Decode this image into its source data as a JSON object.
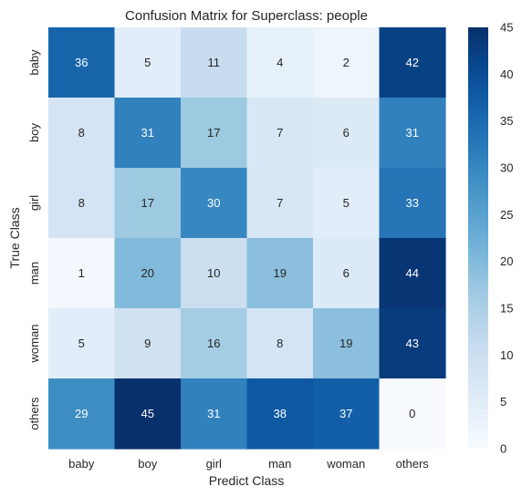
{
  "chart_data": {
    "type": "heatmap",
    "title": "Confusion Matrix for Superclass: people",
    "xlabel": "Predict Class",
    "ylabel": "True Class",
    "x_categories": [
      "baby",
      "boy",
      "girl",
      "man",
      "woman",
      "others"
    ],
    "y_categories": [
      "baby",
      "boy",
      "girl",
      "man",
      "woman",
      "others"
    ],
    "values": [
      [
        36,
        5,
        11,
        4,
        2,
        42
      ],
      [
        8,
        31,
        17,
        7,
        6,
        31
      ],
      [
        8,
        17,
        30,
        7,
        5,
        33
      ],
      [
        1,
        20,
        10,
        19,
        6,
        44
      ],
      [
        5,
        9,
        16,
        8,
        19,
        43
      ],
      [
        29,
        45,
        31,
        38,
        37,
        0
      ]
    ],
    "colorbar": {
      "colormap": "Blues",
      "range": [
        0,
        45
      ],
      "ticks": [
        "0",
        "5",
        "10",
        "15",
        "20",
        "25",
        "30",
        "35",
        "40",
        "45"
      ]
    }
  }
}
